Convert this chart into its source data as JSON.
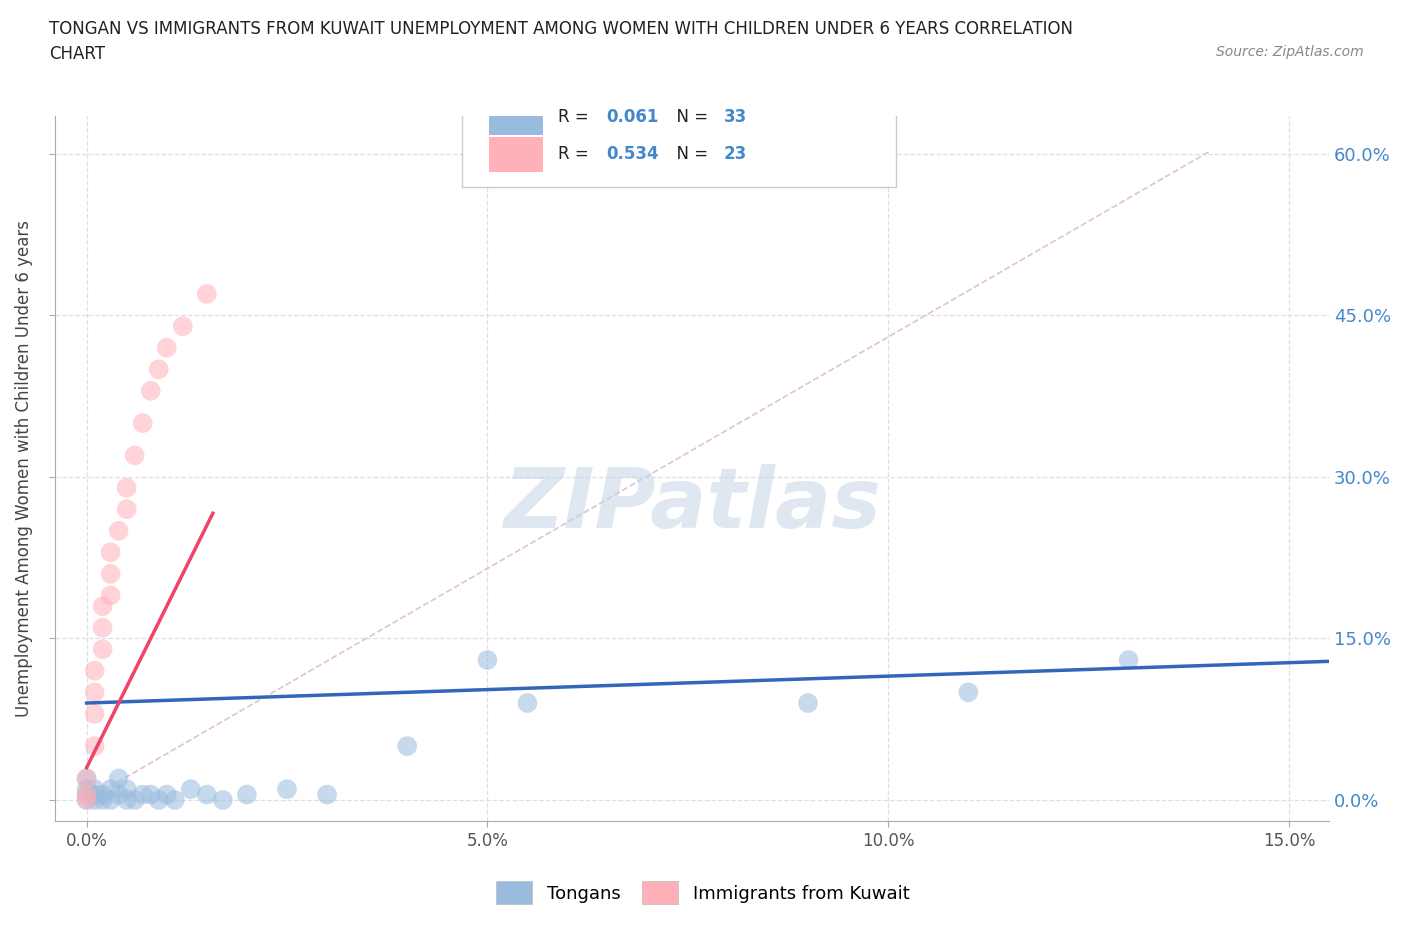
{
  "title_line1": "TONGAN VS IMMIGRANTS FROM KUWAIT UNEMPLOYMENT AMONG WOMEN WITH CHILDREN UNDER 6 YEARS CORRELATION",
  "title_line2": "CHART",
  "source": "Source: ZipAtlas.com",
  "ylabel": "Unemployment Among Women with Children Under 6 years",
  "xlim": [
    -0.004,
    0.155
  ],
  "ylim": [
    -0.02,
    0.635
  ],
  "legend_label1": "Tongans",
  "legend_label2": "Immigrants from Kuwait",
  "R1": "0.061",
  "N1": "33",
  "R2": "0.534",
  "N2": "23",
  "color_blue": "#99BBDD",
  "color_pink": "#FFB0B8",
  "trend_blue": "#3366BB",
  "trend_pink": "#EE4466",
  "ref_line_color": "#DDBBCC",
  "watermark_color": "#C5D5E5",
  "background": "#FFFFFF",
  "grid_color": "#DDDDEE",
  "xtick_vals": [
    0.0,
    0.05,
    0.1,
    0.15
  ],
  "ytick_vals": [
    0.0,
    0.15,
    0.3,
    0.45,
    0.6
  ],
  "tongan_x": [
    0.0,
    0.0,
    0.0,
    0.0,
    0.001,
    0.001,
    0.001,
    0.002,
    0.002,
    0.003,
    0.003,
    0.004,
    0.004,
    0.005,
    0.005,
    0.006,
    0.007,
    0.008,
    0.009,
    0.01,
    0.011,
    0.013,
    0.015,
    0.017,
    0.02,
    0.025,
    0.03,
    0.04,
    0.05,
    0.055,
    0.09,
    0.11,
    0.13
  ],
  "tongan_y": [
    0.0,
    0.005,
    0.01,
    0.02,
    0.0,
    0.005,
    0.01,
    0.0,
    0.005,
    0.0,
    0.01,
    0.005,
    0.02,
    0.0,
    0.01,
    0.0,
    0.005,
    0.005,
    0.0,
    0.005,
    0.0,
    0.01,
    0.005,
    0.0,
    0.005,
    0.01,
    0.005,
    0.05,
    0.13,
    0.09,
    0.09,
    0.1,
    0.13
  ],
  "kuwait_x": [
    0.0,
    0.0,
    0.0,
    0.001,
    0.001,
    0.001,
    0.001,
    0.002,
    0.002,
    0.002,
    0.003,
    0.003,
    0.003,
    0.004,
    0.005,
    0.005,
    0.006,
    0.007,
    0.008,
    0.009,
    0.01,
    0.012,
    0.015
  ],
  "kuwait_y": [
    0.0,
    0.005,
    0.02,
    0.05,
    0.08,
    0.1,
    0.12,
    0.14,
    0.16,
    0.18,
    0.19,
    0.21,
    0.23,
    0.25,
    0.27,
    0.29,
    0.32,
    0.35,
    0.38,
    0.4,
    0.42,
    0.44,
    0.47
  ]
}
